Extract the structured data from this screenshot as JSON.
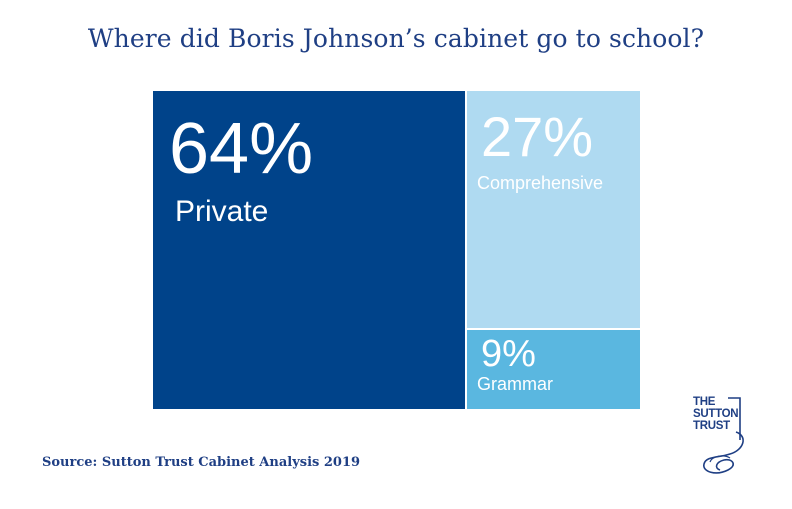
{
  "title": "Where did Boris Johnson’s cabinet go to school?",
  "source": "Source: Sutton Trust Cabinet Analysis 2019",
  "logo": {
    "line1": "THE",
    "line2": "SUTTON",
    "line3": "TRUST"
  },
  "chart_data": {
    "type": "treemap",
    "title": "Where did Boris Johnson’s cabinet go to school?",
    "unit": "%",
    "series": [
      {
        "name": "Private",
        "value": 64,
        "label": "64%",
        "color": "#00438a"
      },
      {
        "name": "Comprehensive",
        "value": 27,
        "label": "27%",
        "color": "#afdaf1"
      },
      {
        "name": "Grammar",
        "value": 9,
        "label": "9%",
        "color": "#5ab7e0"
      }
    ]
  }
}
